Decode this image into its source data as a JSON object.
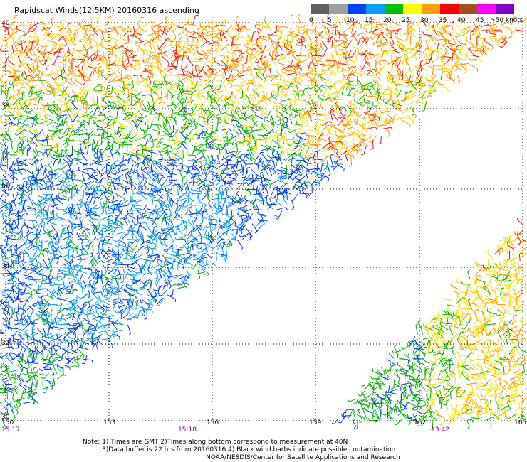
{
  "title": "Rapidscat Winds(12.5KM) 20160316 ascending",
  "legend": {
    "labels": [
      "0",
      "5",
      "10",
      "15",
      "20",
      "25",
      "30",
      "35",
      "40",
      "45",
      ">50 knots"
    ],
    "colors": [
      "#606060",
      "#a0a0a0",
      "#0040ff",
      "#00a0ff",
      "#00c000",
      "#ffff00",
      "#ffa000",
      "#ff0000",
      "#a05020",
      "#ff00ff",
      "#8000c0"
    ]
  },
  "axes": {
    "lat_labels": [
      "40",
      "38",
      "36",
      "34",
      "32",
      "30"
    ],
    "lon_labels": [
      "150",
      "153",
      "156",
      "159",
      "162",
      "165"
    ]
  },
  "times": [
    "15:17",
    "15:18",
    "13:42"
  ],
  "notes": [
    "Note: 1) Times are GMT 2)Times along bottom correspond to measurement at 40N",
    "3)Data buffer is 22 hrs from 20160316 4) Black wind barbs indicate possible contamination",
    "NOAA/NESDIS/Center for Satellite Applications and Research"
  ]
}
